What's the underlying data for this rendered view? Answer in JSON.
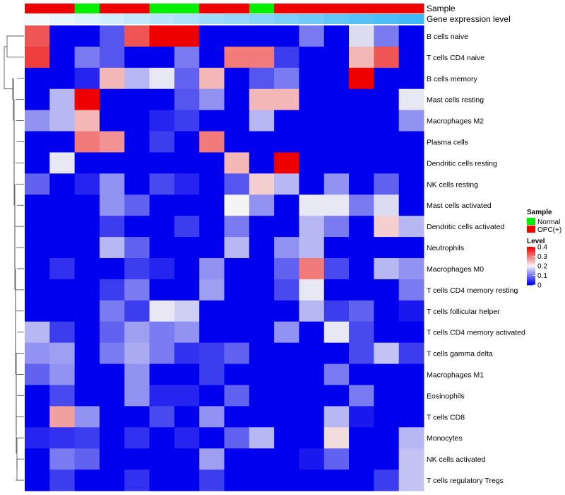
{
  "chart_data": {
    "type": "heatmap",
    "title": "",
    "annotations": [
      {
        "name": "Sample",
        "values": [
          "OPC(+)",
          "OPC(+)",
          "Normal",
          "OPC(+)",
          "OPC(+)",
          "Normal",
          "Normal",
          "OPC(+)",
          "OPC(+)",
          "Normal",
          "OPC(+)",
          "OPC(+)",
          "OPC(+)",
          "OPC(+)",
          "OPC(+)",
          "OPC(+)"
        ],
        "colors": {
          "Normal": "#00ee00",
          "OPC(+)": "#ee0000"
        }
      },
      {
        "name": "Gene expression level",
        "values": [
          0,
          0.07,
          0.13,
          0.2,
          0.27,
          0.33,
          0.4,
          0.47,
          0.53,
          0.6,
          0.67,
          0.73,
          0.8,
          0.87,
          0.93,
          1.0
        ],
        "colors": {
          "low": "#f4fbff",
          "high": "#3fb8f5"
        }
      }
    ],
    "rows": [
      "B cells naive",
      "T cells CD4 naive",
      "B cells memory",
      "Mast cells resting",
      "Macrophages M2",
      "Plasma cells",
      "Dendritic cells resting",
      "NK cells resting",
      "Mast cells activated",
      "Dendritic cells activated",
      "Neutrophils",
      "Macrophages M0",
      "T cells CD4 memory resting",
      "T cells follicular helper",
      "T cells CD4 memory activated",
      "T cells gamma delta",
      "Macrophages M1",
      "Eosinophils",
      "T cells CD8",
      "Monocytes",
      "NK cells activated",
      "T cells regulatory  Tregs"
    ],
    "values": [
      [
        0.33,
        0,
        0,
        0.07,
        0.33,
        0.4,
        0.4,
        0,
        0,
        0,
        0,
        0.1,
        0,
        0.18,
        0.1,
        0
      ],
      [
        0.35,
        0,
        0.1,
        0.07,
        0,
        0,
        0.1,
        0,
        0.3,
        0.3,
        0.05,
        0,
        0,
        0.25,
        0.33,
        0
      ],
      [
        0,
        0,
        0.03,
        0.25,
        0.15,
        0.19,
        0.08,
        0.25,
        0,
        0.07,
        0.1,
        0,
        0,
        0.4,
        0,
        0
      ],
      [
        0,
        0.15,
        0.4,
        0,
        0,
        0,
        0.07,
        0.12,
        0,
        0.25,
        0.25,
        0,
        0,
        0,
        0,
        0.19
      ],
      [
        0.12,
        0.15,
        0.25,
        0,
        0,
        0.03,
        0.05,
        0,
        0,
        0.15,
        0,
        0,
        0,
        0,
        0,
        0.12
      ],
      [
        0,
        0,
        0.3,
        0.28,
        0,
        0.05,
        0,
        0.3,
        0,
        0,
        0,
        0,
        0,
        0,
        0,
        0
      ],
      [
        0,
        0.19,
        0,
        0,
        0,
        0,
        0,
        0,
        0.25,
        0,
        0.4,
        0,
        0,
        0,
        0,
        0
      ],
      [
        0.08,
        0,
        0.03,
        0.12,
        0,
        0.06,
        0.03,
        0,
        0.07,
        0.23,
        0.15,
        0,
        0.12,
        0,
        0.08,
        0
      ],
      [
        0,
        0,
        0,
        0.12,
        0.08,
        0,
        0,
        0,
        0.2,
        0.12,
        0,
        0.19,
        0.19,
        0.1,
        0.18,
        0
      ],
      [
        0,
        0,
        0,
        0.05,
        0,
        0,
        0.05,
        0,
        0.1,
        0,
        0,
        0.15,
        0.1,
        0,
        0.23,
        0.15
      ],
      [
        0,
        0,
        0,
        0.15,
        0.08,
        0,
        0,
        0,
        0.15,
        0,
        0.12,
        0.15,
        0,
        0,
        0,
        0
      ],
      [
        0,
        0.04,
        0,
        0,
        0.05,
        0.03,
        0,
        0.12,
        0,
        0,
        0.08,
        0.3,
        0.06,
        0,
        0.15,
        0.12
      ],
      [
        0,
        0,
        0,
        0.05,
        0.1,
        0,
        0,
        0.13,
        0,
        0,
        0.06,
        0.19,
        0,
        0,
        0,
        0.1
      ],
      [
        0,
        0,
        0,
        0.1,
        0.05,
        0.19,
        0.17,
        0,
        0,
        0,
        0,
        0.15,
        0.05,
        0.08,
        0,
        0.02
      ],
      [
        0.15,
        0.05,
        0,
        0.08,
        0.13,
        0.1,
        0.12,
        0,
        0,
        0,
        0.12,
        0,
        0.19,
        0.06,
        0,
        0
      ],
      [
        0.12,
        0.13,
        0,
        0.1,
        0.14,
        0.1,
        0.04,
        0.05,
        0.08,
        0,
        0,
        0,
        0,
        0.06,
        0.16,
        0.05
      ],
      [
        0.08,
        0.12,
        0,
        0,
        0.12,
        0,
        0,
        0.05,
        0,
        0,
        0,
        0,
        0.1,
        0,
        0,
        0
      ],
      [
        0,
        0.06,
        0,
        0,
        0.12,
        0.03,
        0.03,
        0,
        0.08,
        0,
        0,
        0,
        0,
        0.1,
        0,
        0
      ],
      [
        0,
        0.27,
        0.12,
        0,
        0,
        0.06,
        0,
        0.12,
        0,
        0,
        0,
        0,
        0.15,
        0.02,
        0,
        0
      ],
      [
        0.03,
        0.04,
        0.05,
        0,
        0.04,
        0,
        0.03,
        0,
        0.08,
        0.15,
        0,
        0,
        0.22,
        0,
        0,
        0.15
      ],
      [
        0,
        0.1,
        0.08,
        0,
        0,
        0,
        0,
        0.13,
        0,
        0,
        0,
        0.02,
        0.08,
        0,
        0,
        0.16
      ],
      [
        0,
        0.05,
        0,
        0,
        0.04,
        0,
        0,
        0.05,
        0,
        0,
        0,
        0,
        0,
        0,
        0.05,
        0.16
      ]
    ],
    "legend": {
      "placement": "right",
      "sample_title": "Sample",
      "sample_entries": [
        {
          "label": "Normal",
          "color": "#00ee00"
        },
        {
          "label": "OPC(+)",
          "color": "#ee0000"
        }
      ],
      "level_title": "Level",
      "level_ticks": [
        "0",
        "0.1",
        "0.2",
        "0.3",
        "0.4"
      ],
      "range": [
        0,
        0.4
      ],
      "low_color": "#0000ee",
      "mid_color": "#f4f4f4",
      "high_color": "#ee0000"
    }
  }
}
